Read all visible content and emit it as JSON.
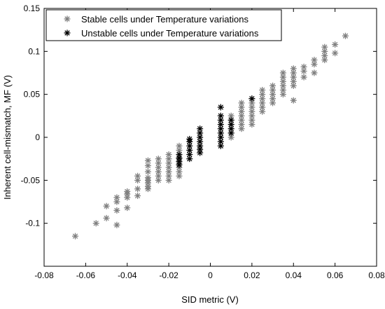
{
  "chart_data": {
    "type": "scatter",
    "title": "",
    "xlabel": "SID metric (V)",
    "ylabel": "Inherent cell-mismatch, MF (V)",
    "xlim": [
      -0.08,
      0.08
    ],
    "ylim": [
      -0.15,
      0.15
    ],
    "xticks": [
      -0.08,
      -0.06,
      -0.04,
      -0.02,
      0,
      0.02,
      0.04,
      0.06,
      0.08
    ],
    "xtick_labels": [
      "-0.08",
      "-0.06",
      "-0.04",
      "-0.02",
      "0",
      "0.02",
      "0.04",
      "0.06",
      "0.08"
    ],
    "yticks": [
      -0.1,
      -0.05,
      0,
      0.05,
      0.1,
      0.15
    ],
    "ytick_labels": [
      "-0.1",
      "-0.05",
      "0",
      "0.05",
      "0.1",
      "0.15"
    ],
    "grid": false,
    "legend_position": "top-left",
    "series": [
      {
        "name": "Stable cells under Temperature variations",
        "color": "#808080",
        "marker": "asterisk",
        "points": [
          [
            -0.065,
            -0.115
          ],
          [
            -0.055,
            -0.1
          ],
          [
            -0.05,
            -0.094
          ],
          [
            -0.05,
            -0.08
          ],
          [
            -0.045,
            -0.102
          ],
          [
            -0.045,
            -0.085
          ],
          [
            -0.045,
            -0.07
          ],
          [
            -0.045,
            -0.075
          ],
          [
            -0.04,
            -0.082
          ],
          [
            -0.04,
            -0.07
          ],
          [
            -0.04,
            -0.063
          ],
          [
            -0.04,
            -0.066
          ],
          [
            -0.035,
            -0.068
          ],
          [
            -0.035,
            -0.06
          ],
          [
            -0.035,
            -0.05
          ],
          [
            -0.035,
            -0.045
          ],
          [
            -0.03,
            -0.057
          ],
          [
            -0.03,
            -0.053
          ],
          [
            -0.03,
            -0.05
          ],
          [
            -0.03,
            -0.047
          ],
          [
            -0.03,
            -0.04
          ],
          [
            -0.03,
            -0.033
          ],
          [
            -0.03,
            -0.027
          ],
          [
            -0.03,
            -0.06
          ],
          [
            -0.025,
            -0.045
          ],
          [
            -0.025,
            -0.04
          ],
          [
            -0.025,
            -0.035
          ],
          [
            -0.025,
            -0.03
          ],
          [
            -0.025,
            -0.05
          ],
          [
            -0.025,
            -0.025
          ],
          [
            -0.02,
            -0.045
          ],
          [
            -0.02,
            -0.04
          ],
          [
            -0.02,
            -0.035
          ],
          [
            -0.02,
            -0.03
          ],
          [
            -0.02,
            -0.025
          ],
          [
            -0.02,
            -0.02
          ],
          [
            -0.02,
            -0.05
          ],
          [
            -0.015,
            -0.035
          ],
          [
            -0.015,
            -0.03
          ],
          [
            -0.015,
            -0.025
          ],
          [
            -0.015,
            -0.02
          ],
          [
            -0.015,
            -0.015
          ],
          [
            -0.015,
            -0.04
          ],
          [
            -0.015,
            -0.045
          ],
          [
            -0.015,
            -0.01
          ],
          [
            0.01,
            0.0
          ],
          [
            0.01,
            0.005
          ],
          [
            0.01,
            0.01
          ],
          [
            0.01,
            0.015
          ],
          [
            0.01,
            0.02
          ],
          [
            0.01,
            0.025
          ],
          [
            0.015,
            0.01
          ],
          [
            0.015,
            0.015
          ],
          [
            0.015,
            0.02
          ],
          [
            0.015,
            0.025
          ],
          [
            0.015,
            0.03
          ],
          [
            0.015,
            0.035
          ],
          [
            0.015,
            0.04
          ],
          [
            0.02,
            0.015
          ],
          [
            0.02,
            0.02
          ],
          [
            0.02,
            0.025
          ],
          [
            0.02,
            0.03
          ],
          [
            0.02,
            0.035
          ],
          [
            0.02,
            0.04
          ],
          [
            0.02,
            0.045
          ],
          [
            0.025,
            0.03
          ],
          [
            0.025,
            0.035
          ],
          [
            0.025,
            0.04
          ],
          [
            0.025,
            0.045
          ],
          [
            0.025,
            0.05
          ],
          [
            0.025,
            0.055
          ],
          [
            0.03,
            0.04
          ],
          [
            0.03,
            0.045
          ],
          [
            0.03,
            0.05
          ],
          [
            0.03,
            0.055
          ],
          [
            0.03,
            0.06
          ],
          [
            0.035,
            0.05
          ],
          [
            0.035,
            0.055
          ],
          [
            0.035,
            0.06
          ],
          [
            0.035,
            0.065
          ],
          [
            0.035,
            0.07
          ],
          [
            0.035,
            0.075
          ],
          [
            0.04,
            0.043
          ],
          [
            0.04,
            0.06
          ],
          [
            0.04,
            0.065
          ],
          [
            0.04,
            0.07
          ],
          [
            0.04,
            0.075
          ],
          [
            0.04,
            0.08
          ],
          [
            0.045,
            0.07
          ],
          [
            0.045,
            0.077
          ],
          [
            0.045,
            0.082
          ],
          [
            0.05,
            0.085
          ],
          [
            0.05,
            0.09
          ],
          [
            0.05,
            0.075
          ],
          [
            0.055,
            0.09
          ],
          [
            0.055,
            0.095
          ],
          [
            0.055,
            0.1
          ],
          [
            0.055,
            0.105
          ],
          [
            0.06,
            0.098
          ],
          [
            0.06,
            0.108
          ],
          [
            0.065,
            0.118
          ]
        ]
      },
      {
        "name": "Unstable cells under Temperature variations",
        "color": "#000000",
        "marker": "asterisk",
        "points": [
          [
            -0.015,
            -0.032
          ],
          [
            -0.015,
            -0.028
          ],
          [
            -0.015,
            -0.024
          ],
          [
            -0.015,
            -0.02
          ],
          [
            -0.01,
            -0.02
          ],
          [
            -0.01,
            -0.015
          ],
          [
            -0.01,
            -0.01
          ],
          [
            -0.01,
            -0.005
          ],
          [
            -0.01,
            -0.002
          ],
          [
            -0.01,
            -0.025
          ],
          [
            -0.005,
            -0.018
          ],
          [
            -0.005,
            -0.014
          ],
          [
            -0.005,
            -0.01
          ],
          [
            -0.005,
            -0.005
          ],
          [
            -0.005,
            0.0
          ],
          [
            -0.005,
            0.005
          ],
          [
            -0.005,
            0.01
          ],
          [
            0.005,
            -0.01
          ],
          [
            0.005,
            -0.005
          ],
          [
            0.005,
            0.0
          ],
          [
            0.005,
            0.005
          ],
          [
            0.005,
            0.01
          ],
          [
            0.005,
            0.015
          ],
          [
            0.005,
            0.02
          ],
          [
            0.005,
            0.025
          ],
          [
            0.005,
            0.035
          ],
          [
            0.01,
            0.005
          ],
          [
            0.01,
            0.01
          ],
          [
            0.01,
            0.015
          ],
          [
            0.01,
            0.02
          ],
          [
            0.02,
            0.045
          ]
        ]
      }
    ]
  }
}
